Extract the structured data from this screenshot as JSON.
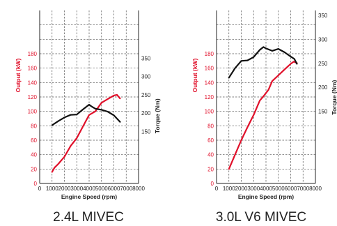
{
  "colors": {
    "output": "#e0102a",
    "torque": "#111111",
    "grid": "#555555",
    "frame": "#222222"
  },
  "chart_data": [
    {
      "type": "line",
      "caption": "2.4L MIVEC",
      "xlabel": "Engine Speed (rpm)",
      "ylabel_left": "Output (kW)",
      "ylabel_right": "Torque (Nm)",
      "xlim": [
        0,
        8000
      ],
      "xticks": [
        "0",
        "1000",
        "2000",
        "3000",
        "4000",
        "5000",
        "6000",
        "7000",
        "8000"
      ],
      "ylim_left": [
        0,
        240
      ],
      "yticks_left": [
        "0",
        "20",
        "40",
        "60",
        "80",
        "100",
        "120",
        "140",
        "160",
        "180"
      ],
      "ylim_right": [
        0,
        480
      ],
      "yticks_right": [
        "150",
        "200",
        "250",
        "300",
        "350"
      ],
      "grid": true,
      "series": [
        {
          "name": "Output (kW)",
          "axis": "left",
          "color": "#e0102a",
          "x": [
            1000,
            1200,
            1500,
            2000,
            2500,
            3000,
            3500,
            4000,
            4500,
            5000,
            5500,
            6000,
            6250,
            6500
          ],
          "y": [
            16,
            22,
            27,
            37,
            52,
            63,
            79,
            95,
            100,
            112,
            117,
            122,
            123,
            118
          ]
        },
        {
          "name": "Torque (Nm)",
          "axis": "right",
          "color": "#111111",
          "x": [
            1000,
            1500,
            2000,
            2500,
            3000,
            3500,
            4000,
            4200,
            4500,
            5000,
            5500,
            6000,
            6500
          ],
          "y": [
            167,
            178,
            188,
            195,
            196,
            210,
            223,
            218,
            212,
            209,
            204,
            194,
            176
          ]
        }
      ]
    },
    {
      "type": "line",
      "caption": "3.0L V6 MIVEC",
      "xlabel": "Engine Speed (rpm)",
      "ylabel_left": "Output (kW)",
      "ylabel_right": "Torque (Nm)",
      "xlim": [
        0,
        8000
      ],
      "xticks": [
        "0",
        "1000",
        "2000",
        "3000",
        "4000",
        "5000",
        "6000",
        "7000",
        "8000"
      ],
      "ylim_left": [
        0,
        240
      ],
      "yticks_left": [
        "0",
        "20",
        "40",
        "60",
        "80",
        "100",
        "120",
        "140",
        "160",
        "180"
      ],
      "ylim_right": [
        0,
        360
      ],
      "yticks_right": [
        "150",
        "200",
        "250",
        "300",
        "350"
      ],
      "grid": true,
      "series": [
        {
          "name": "Output (kW)",
          "axis": "left",
          "color": "#e0102a",
          "x": [
            1000,
            1500,
            2000,
            2500,
            3000,
            3500,
            3800,
            4200,
            4500,
            5000,
            5500,
            6000,
            6250,
            6500
          ],
          "y": [
            20,
            40,
            60,
            78,
            95,
            115,
            121,
            130,
            142,
            150,
            158,
            166,
            169,
            167
          ]
        },
        {
          "name": "Torque (Nm)",
          "axis": "right",
          "color": "#111111",
          "x": [
            1000,
            1500,
            2000,
            2500,
            3000,
            3500,
            3800,
            4000,
            4500,
            5000,
            5500,
            6000,
            6300,
            6500
          ],
          "y": [
            220,
            240,
            255,
            256,
            263,
            278,
            284,
            281,
            276,
            280,
            273,
            264,
            259,
            249
          ]
        }
      ]
    }
  ]
}
